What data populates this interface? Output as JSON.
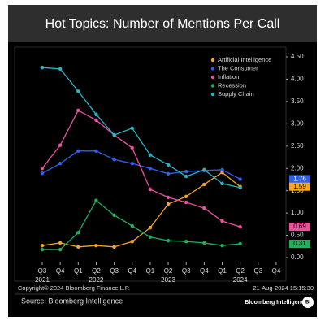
{
  "chart_data": {
    "type": "line",
    "title": "Hot Topics: Number of Mentions Per Call",
    "categories": [
      "Q3",
      "Q4",
      "Q1",
      "Q2",
      "Q3",
      "Q4",
      "Q1",
      "Q2",
      "Q3",
      "Q4",
      "Q1",
      "Q2",
      "Q3",
      "Q4"
    ],
    "year_labels": [
      "2021",
      null,
      null,
      "2022",
      null,
      null,
      null,
      "2023",
      null,
      null,
      null,
      "2024",
      null,
      null
    ],
    "series": [
      {
        "name": "Artificial Intelligence",
        "color": "#f5a623",
        "values": [
          0.27,
          0.33,
          0.24,
          0.27,
          0.24,
          0.36,
          0.67,
          1.2,
          1.37,
          1.64,
          1.91,
          1.59,
          null,
          null
        ]
      },
      {
        "name": "The Consumer",
        "color": "#3060e8",
        "values": [
          1.89,
          2.11,
          2.39,
          2.39,
          2.2,
          2.11,
          2.0,
          1.88,
          1.93,
          1.95,
          1.97,
          1.76,
          null,
          null
        ]
      },
      {
        "name": "Inflation",
        "color": "#ec4f9e",
        "values": [
          2.0,
          2.52,
          3.3,
          3.08,
          2.75,
          2.46,
          1.53,
          1.35,
          1.24,
          1.11,
          0.82,
          0.69,
          null,
          null
        ]
      },
      {
        "name": "Recession",
        "color": "#21b05a",
        "values": [
          0.18,
          0.18,
          0.56,
          1.28,
          0.95,
          0.71,
          0.46,
          0.38,
          0.36,
          0.33,
          0.27,
          0.31,
          null,
          null
        ]
      },
      {
        "name": "Supply Chain",
        "color": "#2ab3c4",
        "values": [
          4.26,
          4.23,
          3.73,
          3.21,
          2.75,
          2.9,
          2.3,
          2.08,
          1.82,
          1.97,
          1.66,
          1.57,
          null,
          null
        ]
      }
    ],
    "labeled_series": [
      1,
      0,
      2,
      3
    ],
    "ylim": [
      -0.25,
      4.6
    ],
    "yticks": [
      {
        "value": 0,
        "label": "0.00"
      },
      {
        "value": 0.5,
        "label": "0.50"
      },
      {
        "value": 1,
        "label": "1.00"
      },
      {
        "value": 1.5,
        "label": "1.50"
      },
      {
        "value": 2,
        "label": "2.00"
      },
      {
        "value": 2.5,
        "label": "2.50"
      },
      {
        "value": 3,
        "label": "3.00"
      },
      {
        "value": 3.5,
        "label": "3.50"
      },
      {
        "value": 4,
        "label": "4.00"
      },
      {
        "value": 4.5,
        "label": "4.50"
      }
    ],
    "grid": false,
    "legend": "upper right",
    "copyright": "Copyright© 2024 Bloomberg Finance L.P.",
    "timestamp": "21-Aug-2024 15:15:30",
    "source": "Source: Bloomberg Intelligence",
    "logo": "Bloomberg Intelligence",
    "logo_badge": "BI"
  }
}
